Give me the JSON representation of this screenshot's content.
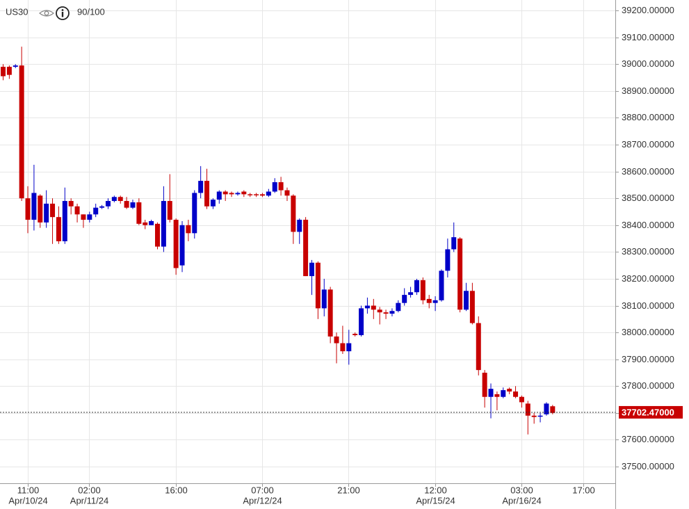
{
  "chart_data": {
    "type": "candlestick",
    "title": "US30",
    "subtitle": "90/100",
    "categories": [
      null,
      null,
      null,
      null,
      "11:00",
      null,
      null,
      null,
      null,
      null,
      null,
      null,
      null,
      null,
      "02:00",
      null,
      null,
      null,
      null,
      null,
      null,
      null,
      null,
      null,
      null,
      null,
      null,
      null,
      "16:00",
      null,
      null,
      null,
      null,
      null,
      null,
      null,
      null,
      null,
      null,
      null,
      null,
      null,
      "07:00",
      null,
      null,
      null,
      null,
      null,
      null,
      null,
      null,
      null,
      null,
      null,
      null,
      null,
      "21:00",
      null,
      null,
      null,
      null,
      null,
      null,
      null,
      null,
      null,
      null,
      null,
      null,
      null,
      "12:00",
      null,
      null,
      null,
      null,
      null,
      null,
      null,
      null,
      null,
      null,
      null,
      null,
      null,
      "03:00",
      null,
      null,
      null,
      null,
      null,
      null,
      null,
      null,
      null,
      "17:00"
    ],
    "category_dates": [
      null,
      null,
      null,
      null,
      "Apr/10/24",
      null,
      null,
      null,
      null,
      null,
      null,
      null,
      null,
      null,
      "Apr/11/24",
      null,
      null,
      null,
      null,
      null,
      null,
      null,
      null,
      null,
      null,
      null,
      null,
      null,
      null,
      null,
      null,
      null,
      null,
      null,
      null,
      null,
      null,
      null,
      null,
      null,
      null,
      null,
      "Apr/12/24",
      null,
      null,
      null,
      null,
      null,
      null,
      null,
      null,
      null,
      null,
      null,
      null,
      null,
      null,
      null,
      null,
      null,
      null,
      null,
      null,
      null,
      null,
      null,
      null,
      null,
      null,
      null,
      "Apr/15/24",
      null,
      null,
      null,
      null,
      null,
      null,
      null,
      null,
      null,
      null,
      null,
      null,
      null,
      "Apr/16/24",
      null,
      null,
      null,
      null,
      null,
      null,
      null,
      null,
      null,
      null
    ],
    "open": [
      38990,
      38990,
      38990,
      38995,
      38500,
      38420,
      38510,
      38410,
      38480,
      38430,
      38340,
      38490,
      38470,
      38440,
      38420,
      38440,
      38465,
      38470,
      38490,
      38505,
      38490,
      38465,
      38485,
      38410,
      38400,
      38405,
      38320,
      38490,
      38420,
      38250,
      38400,
      38370,
      38520,
      38565,
      38470,
      38495,
      38525,
      38520,
      38515,
      38525,
      38515,
      38515,
      38515,
      38510,
      38525,
      38560,
      38530,
      38510,
      38375,
      38420,
      38210,
      38260,
      38090,
      38160,
      37985,
      37960,
      37930,
      37995,
      37990,
      38090,
      38100,
      38085,
      38075,
      38070,
      38080,
      38110,
      38140,
      38150,
      38195,
      38125,
      38110,
      38120,
      38230,
      38310,
      38350,
      38085,
      38155,
      38035,
      37850,
      37760,
      37770,
      37760,
      37790,
      37780,
      37760,
      37735,
      37690,
      37690,
      37695,
      37725,
      null,
      null,
      null,
      null,
      null
    ],
    "high": [
      39000,
      38995,
      39000,
      39065,
      38545,
      38625,
      38515,
      38530,
      38500,
      38470,
      38540,
      38500,
      38480,
      38440,
      38450,
      38480,
      38475,
      38500,
      38510,
      38510,
      38505,
      38495,
      38500,
      38420,
      38420,
      38410,
      38545,
      38590,
      38425,
      38415,
      38420,
      38530,
      38620,
      38610,
      38500,
      38530,
      38530,
      38525,
      38525,
      38530,
      38520,
      38520,
      38520,
      38535,
      38575,
      38580,
      38540,
      38515,
      38425,
      38430,
      38270,
      38265,
      38200,
      38170,
      38000,
      38025,
      38010,
      38000,
      38100,
      38130,
      38125,
      38095,
      38085,
      38090,
      38120,
      38165,
      38170,
      38200,
      38205,
      38140,
      38135,
      38235,
      38350,
      38410,
      38355,
      38185,
      38185,
      38060,
      37860,
      37810,
      37780,
      37795,
      37795,
      37800,
      37765,
      37745,
      37700,
      37700,
      37740,
      37730,
      null,
      null,
      null,
      null,
      null
    ],
    "low": [
      38940,
      38945,
      38985,
      38490,
      38370,
      38380,
      38390,
      38390,
      38330,
      38330,
      38330,
      38440,
      38410,
      38390,
      38410,
      38430,
      38460,
      38460,
      38485,
      38480,
      38460,
      38460,
      38400,
      38385,
      38400,
      38310,
      38300,
      38410,
      38215,
      38225,
      38340,
      38350,
      38500,
      38460,
      38460,
      38480,
      38490,
      38505,
      38510,
      38505,
      38505,
      38505,
      38505,
      38505,
      38520,
      38510,
      38490,
      38330,
      38330,
      38210,
      38140,
      38050,
      38060,
      37960,
      37885,
      37920,
      37880,
      37985,
      37985,
      38070,
      38050,
      38030,
      38050,
      38060,
      38075,
      38100,
      38130,
      38140,
      38105,
      38090,
      38080,
      38115,
      38205,
      38300,
      38075,
      38080,
      38030,
      37840,
      37720,
      37680,
      37710,
      37755,
      37770,
      37755,
      37720,
      37620,
      37660,
      37665,
      37690,
      37695,
      null,
      null,
      null,
      null,
      null
    ],
    "close": [
      38955,
      38960,
      38995,
      38500,
      38420,
      38520,
      38410,
      38480,
      38430,
      38340,
      38490,
      38470,
      38440,
      38420,
      38440,
      38465,
      38470,
      38490,
      38505,
      38490,
      38465,
      38485,
      38405,
      38400,
      38415,
      38320,
      38490,
      38420,
      38240,
      38400,
      38370,
      38520,
      38565,
      38470,
      38495,
      38525,
      38515,
      38515,
      38520,
      38515,
      38512,
      38512,
      38510,
      38525,
      38560,
      38530,
      38510,
      38375,
      38420,
      38210,
      38260,
      38090,
      38160,
      37985,
      37960,
      37930,
      37960,
      37990,
      38090,
      38100,
      38085,
      38075,
      38070,
      38080,
      38110,
      38140,
      38150,
      38195,
      38120,
      38110,
      38120,
      38230,
      38310,
      38355,
      38085,
      38155,
      38035,
      37860,
      37760,
      37790,
      37760,
      37785,
      37780,
      37760,
      37740,
      37690,
      37685,
      37690,
      37735,
      37700,
      null,
      null,
      null,
      null,
      null
    ],
    "up_color": "#0000c8",
    "down_color": "#c80000",
    "ylim": [
      37438,
      39239
    ],
    "yticks": [
      {
        "value": 37500,
        "label": "37500.00000"
      },
      {
        "value": 37600,
        "label": "37600.00000"
      },
      {
        "value": 37700,
        "label": "37700.00000"
      },
      {
        "value": 37800,
        "label": "37800.00000"
      },
      {
        "value": 37900,
        "label": "37900.00000"
      },
      {
        "value": 38000,
        "label": "38000.00000"
      },
      {
        "value": 38100,
        "label": "38100.00000"
      },
      {
        "value": 38200,
        "label": "38200.00000"
      },
      {
        "value": 38300,
        "label": "38300.00000"
      },
      {
        "value": 38400,
        "label": "38400.00000"
      },
      {
        "value": 38500,
        "label": "38500.00000"
      },
      {
        "value": 38600,
        "label": "38600.00000"
      },
      {
        "value": 38700,
        "label": "38700.00000"
      },
      {
        "value": 38800,
        "label": "38800.00000"
      },
      {
        "value": 38900,
        "label": "38900.00000"
      },
      {
        "value": 39000,
        "label": "39000.00000"
      },
      {
        "value": 39100,
        "label": "39100.00000"
      },
      {
        "value": 39200,
        "label": "39200.00000"
      }
    ],
    "last_price": {
      "value": 37702.47,
      "label": "37702.47000"
    },
    "grid": true
  }
}
